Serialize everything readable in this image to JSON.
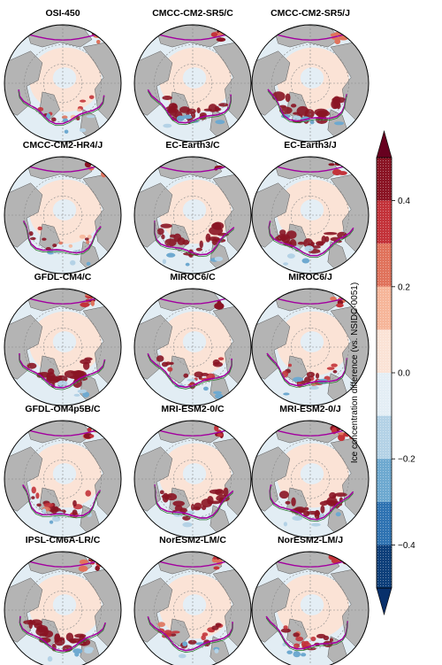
{
  "chart_data": {
    "type": "heatmap",
    "description_kind": "polar stereographic map panels",
    "panels": [
      {
        "title": "OSI-450",
        "anomaly": "weak"
      },
      {
        "title": "CMCC-CM2-SR5/C",
        "anomaly": "strong"
      },
      {
        "title": "CMCC-CM2-SR5/J",
        "anomaly": "strong"
      },
      {
        "title": "CMCC-CM2-HR4/J",
        "anomaly": "weak"
      },
      {
        "title": "EC-Earth3/C",
        "anomaly": "strong"
      },
      {
        "title": "EC-Earth3/J",
        "anomaly": "strong"
      },
      {
        "title": "GFDL-CM4/C",
        "anomaly": "strong"
      },
      {
        "title": "MIROC6/C",
        "anomaly": "medium"
      },
      {
        "title": "MIROC6/J",
        "anomaly": "medium"
      },
      {
        "title": "GFDL-OM4p5B/C",
        "anomaly": "medium"
      },
      {
        "title": "MRI-ESM2-0/C",
        "anomaly": "strong"
      },
      {
        "title": "MRI-ESM2-0/J",
        "anomaly": "strong"
      },
      {
        "title": "IPSL-CM6A-LR/C",
        "anomaly": "strong"
      },
      {
        "title": "NorESM2-LM/C",
        "anomaly": "medium"
      },
      {
        "title": "NorESM2-LM/J",
        "anomaly": "medium"
      }
    ],
    "colorbar": {
      "label": "Ice concentration difference (vs. NSIDC-0051)",
      "range": [
        -0.5,
        0.5
      ],
      "extend": "both",
      "ticks": [
        0.4,
        0.2,
        0.0,
        -0.2,
        -0.4
      ],
      "tick_labels": [
        "0.4",
        "0.2",
        "0.0",
        "−0.2",
        "−0.4"
      ],
      "bins": [
        {
          "from": 0.4,
          "to": 0.5,
          "color": "#8a1424"
        },
        {
          "from": 0.3,
          "to": 0.4,
          "color": "#c3333a"
        },
        {
          "from": 0.2,
          "to": 0.3,
          "color": "#e0735c"
        },
        {
          "from": 0.1,
          "to": 0.2,
          "color": "#f6b69a"
        },
        {
          "from": 0.0,
          "to": 0.1,
          "color": "#fbe3d6"
        },
        {
          "from": -0.1,
          "to": 0.0,
          "color": "#e4eef5"
        },
        {
          "from": -0.2,
          "to": -0.1,
          "color": "#b4d2e6"
        },
        {
          "from": -0.3,
          "to": -0.2,
          "color": "#6ea9d0"
        },
        {
          "from": -0.4,
          "to": -0.3,
          "color": "#2f73b2"
        },
        {
          "from": -0.5,
          "to": -0.4,
          "color": "#0d3f7a"
        }
      ],
      "over_color": "#67001f",
      "under_color": "#08306b"
    },
    "map_colors": {
      "land": "#b4b4b4",
      "ocean": "#e2edf4",
      "arctic_ice": "#fbe3d6",
      "ice_edge_line": "#a3009f",
      "ice_edge_line_2": "#2e7d32",
      "grid": "#888888"
    }
  }
}
